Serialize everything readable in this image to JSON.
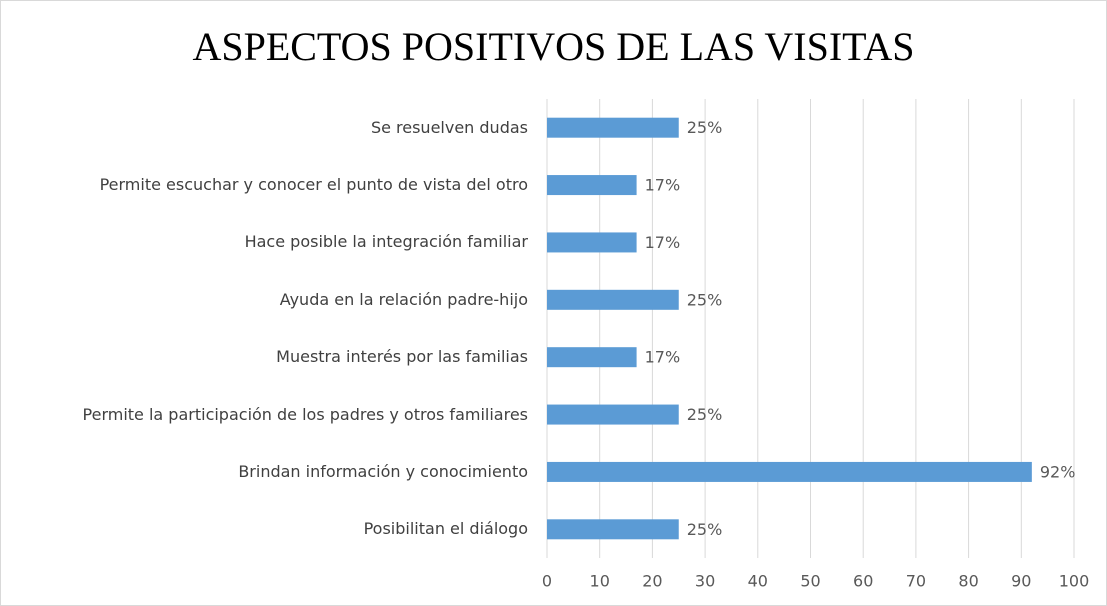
{
  "chart_data": {
    "type": "bar",
    "orientation": "horizontal",
    "title": "ASPECTOS POSITIVOS DE LAS VISITAS",
    "categories": [
      "Se resuelven dudas",
      "Permite escuchar y conocer el punto de vista del otro",
      "Hace posible la integración familiar",
      "Ayuda en la relación padre-hijo",
      "Muestra interés por las familias",
      "Permite la participación de los padres y otros familiares",
      "Brindan información y conocimiento",
      "Posibilitan el diálogo"
    ],
    "values": [
      25,
      17,
      17,
      25,
      17,
      25,
      92,
      25
    ],
    "value_labels": [
      "25%",
      "17%",
      "17%",
      "25%",
      "17%",
      "25%",
      "92%",
      "25%"
    ],
    "color": "#5b9bd5",
    "xlim": [
      0,
      100
    ],
    "xticks": [
      0,
      10,
      20,
      30,
      40,
      50,
      60,
      70,
      80,
      90,
      100
    ],
    "grid": true
  }
}
